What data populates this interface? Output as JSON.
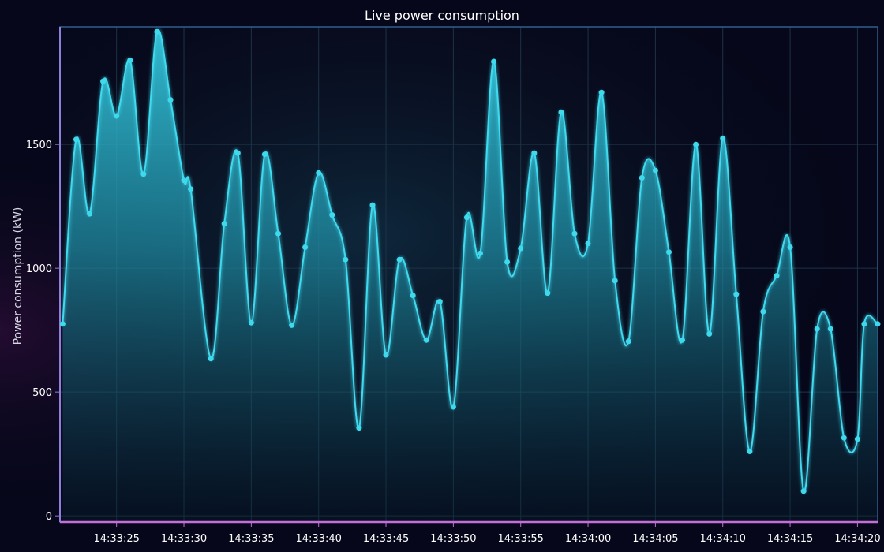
{
  "chart_data": {
    "type": "area",
    "title": "Live power consumption",
    "xlabel": "",
    "ylabel": "Power consumption (kW)",
    "x_tick_labels": [
      "14:33:25",
      "14:33:30",
      "14:33:35",
      "14:33:40",
      "14:33:45",
      "14:33:50",
      "14:33:55",
      "14:34:00",
      "14:34:05",
      "14:34:10",
      "14:34:15",
      "14:34:20"
    ],
    "x_tick_seconds": [
      25,
      30,
      35,
      40,
      45,
      50,
      55,
      60,
      65,
      70,
      75,
      80
    ],
    "y_ticks": [
      0,
      500,
      1000,
      1500
    ],
    "xlim_seconds": [
      20.8,
      81.5
    ],
    "ylim": [
      -25,
      1975
    ],
    "grid": true,
    "legend": "none",
    "series": [
      {
        "x_seconds": [
          21.0,
          22.0,
          23.0,
          24.0,
          25.0,
          26.0,
          27.0,
          28.0,
          29.0,
          30.0,
          30.5,
          32.0,
          33.0,
          34.0,
          35.0,
          36.0,
          37.0,
          38.0,
          39.0,
          40.0,
          41.0,
          42.0,
          43.0,
          44.0,
          45.0,
          46.0,
          47.0,
          48.0,
          49.0,
          50.0,
          51.0,
          52.0,
          53.0,
          54.0,
          55.0,
          56.0,
          57.0,
          58.0,
          59.0,
          60.0,
          61.0,
          62.0,
          63.0,
          64.0,
          65.0,
          66.0,
          67.0,
          68.0,
          69.0,
          70.0,
          71.0,
          72.0,
          73.0,
          74.0,
          75.0,
          76.0,
          77.0,
          78.0,
          79.0,
          80.0,
          80.5,
          81.5
        ],
        "values": [
          775,
          1520,
          1220,
          1755,
          1615,
          1840,
          1380,
          1955,
          1680,
          1355,
          1320,
          635,
          1180,
          1465,
          780,
          1460,
          1140,
          770,
          1085,
          1385,
          1215,
          1035,
          355,
          1255,
          650,
          1035,
          890,
          710,
          865,
          440,
          1205,
          1060,
          1835,
          1025,
          1080,
          1465,
          900,
          1630,
          1140,
          1100,
          1710,
          950,
          705,
          1365,
          1395,
          1065,
          710,
          1500,
          735,
          1525,
          895,
          260,
          825,
          970,
          1085,
          100,
          755,
          755,
          315,
          310,
          775,
          775
        ]
      }
    ],
    "colors": {
      "line": "#3fd9ee",
      "marker": "#3fd9ee",
      "area_top": "#34c6dc",
      "area_bottom": "#06202c",
      "axis_bottom": "#c46fd8",
      "axis_left": "#8e80d8",
      "frame": "#2e5f8c",
      "grid": "#1d3346",
      "text": "#ffffff"
    }
  }
}
